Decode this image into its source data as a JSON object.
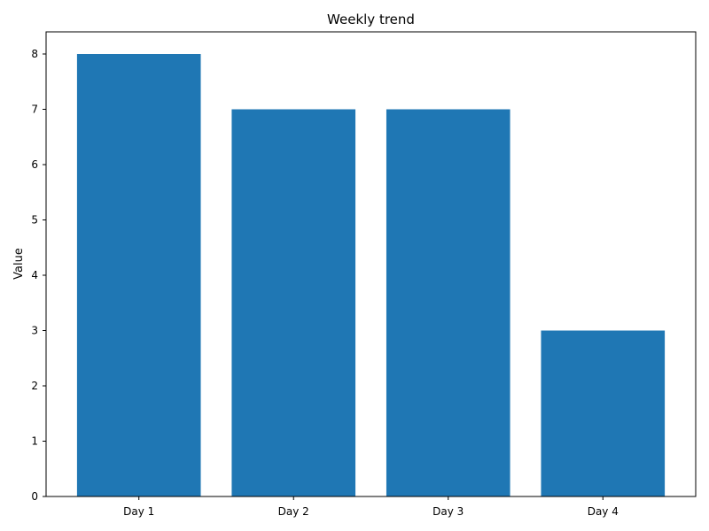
{
  "chart_data": {
    "type": "bar",
    "title": "Weekly trend",
    "xlabel": "",
    "ylabel": "Value",
    "categories": [
      "Day 1",
      "Day 2",
      "Day 3",
      "Day 4"
    ],
    "values": [
      8,
      7,
      7,
      3
    ],
    "ylim": [
      0,
      8.4
    ],
    "yticks": [
      "0",
      "1",
      "2",
      "3",
      "4",
      "5",
      "6",
      "7",
      "8"
    ],
    "bar_color": "#1f77b4",
    "grid": false,
    "legend": "none"
  }
}
